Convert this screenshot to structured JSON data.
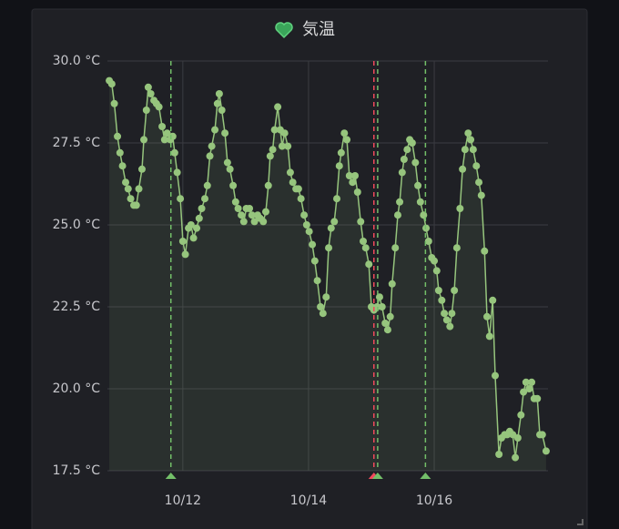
{
  "chart_data": {
    "type": "line",
    "title": "気温",
    "x": [
      10.83,
      10.87,
      10.91,
      10.96,
      11.0,
      11.04,
      11.09,
      11.13,
      11.17,
      11.22,
      11.26,
      11.3,
      11.35,
      11.38,
      11.42,
      11.45,
      11.49,
      11.54,
      11.58,
      11.62,
      11.67,
      11.71,
      11.75,
      11.8,
      11.84,
      11.87,
      11.91,
      11.96,
      12.0,
      12.04,
      12.09,
      12.13,
      12.17,
      12.22,
      12.26,
      12.3,
      12.35,
      12.39,
      12.43,
      12.46,
      12.51,
      12.55,
      12.58,
      12.62,
      12.67,
      12.71,
      12.75,
      12.8,
      12.84,
      12.88,
      12.93,
      12.97,
      13.01,
      13.06,
      13.1,
      13.14,
      13.19,
      13.23,
      13.28,
      13.32,
      13.36,
      13.39,
      13.43,
      13.46,
      13.51,
      13.55,
      13.58,
      13.62,
      13.67,
      13.71,
      13.75,
      13.8,
      13.84,
      13.88,
      13.93,
      13.97,
      14.01,
      14.06,
      14.1,
      14.14,
      14.19,
      14.23,
      14.28,
      14.32,
      14.36,
      14.41,
      14.45,
      14.49,
      14.52,
      14.57,
      14.61,
      14.65,
      14.7,
      14.74,
      14.78,
      14.83,
      14.87,
      14.91,
      14.96,
      15.0,
      15.04,
      15.09,
      15.13,
      15.17,
      15.22,
      15.26,
      15.3,
      15.33,
      15.38,
      15.42,
      15.45,
      15.49,
      15.52,
      15.57,
      15.61,
      15.65,
      15.7,
      15.74,
      15.78,
      15.83,
      15.87,
      15.91,
      15.96,
      16.0,
      16.04,
      16.07,
      16.12,
      16.16,
      16.2,
      16.25,
      16.28,
      16.32,
      16.36,
      16.41,
      16.45,
      16.49,
      16.54,
      16.58,
      16.62,
      16.67,
      16.71,
      16.75,
      16.8,
      16.84,
      16.88,
      16.93,
      16.97,
      17.03,
      17.07,
      17.12,
      17.16,
      17.2,
      17.25,
      17.29,
      17.33,
      17.38,
      17.42,
      17.46,
      17.51,
      17.55,
      17.59,
      17.64,
      17.68,
      17.72,
      17.78
    ],
    "series": [
      {
        "color": "#96c57d",
        "values": [
          29.4,
          29.3,
          28.7,
          27.7,
          27.2,
          26.8,
          26.3,
          26.1,
          25.8,
          25.6,
          25.6,
          26.1,
          26.7,
          27.6,
          28.5,
          29.2,
          29.0,
          28.8,
          28.7,
          28.6,
          28.0,
          27.6,
          27.8,
          27.6,
          27.7,
          27.2,
          26.6,
          25.8,
          24.5,
          24.1,
          24.9,
          25.0,
          24.6,
          24.9,
          25.2,
          25.5,
          25.8,
          26.2,
          27.1,
          27.4,
          27.9,
          28.7,
          29.0,
          28.5,
          27.8,
          26.9,
          26.7,
          26.2,
          25.7,
          25.5,
          25.3,
          25.1,
          25.5,
          25.5,
          25.3,
          25.1,
          25.3,
          25.2,
          25.1,
          25.4,
          26.2,
          27.1,
          27.3,
          27.9,
          28.6,
          27.9,
          27.4,
          27.8,
          27.4,
          26.6,
          26.3,
          26.1,
          26.1,
          25.8,
          25.3,
          25.0,
          24.8,
          24.4,
          23.9,
          23.3,
          22.5,
          22.3,
          22.8,
          24.3,
          24.9,
          25.1,
          25.8,
          26.8,
          27.2,
          27.8,
          27.6,
          26.5,
          26.3,
          26.5,
          26.0,
          25.1,
          24.5,
          24.3,
          23.8,
          22.5,
          22.4,
          22.5,
          22.8,
          22.5,
          22.0,
          21.8,
          22.2,
          23.2,
          24.3,
          25.3,
          25.7,
          26.6,
          27.0,
          27.3,
          27.6,
          27.5,
          26.9,
          26.2,
          25.7,
          25.3,
          24.9,
          24.5,
          24.0,
          23.9,
          23.6,
          23.0,
          22.7,
          22.3,
          22.1,
          21.9,
          22.3,
          23.0,
          24.3,
          25.5,
          26.7,
          27.3,
          27.8,
          27.6,
          27.3,
          26.8,
          26.3,
          25.9,
          24.2,
          22.2,
          21.6,
          22.7,
          20.4,
          18.0,
          18.5,
          18.6,
          18.6,
          18.7,
          18.6,
          17.9,
          18.5,
          19.2,
          19.9,
          20.2,
          20.0,
          20.2,
          19.7,
          19.7,
          18.6,
          18.6,
          18.1
        ]
      }
    ],
    "xlim": [
      10.8,
      17.81
    ],
    "xticks": [
      {
        "value": 12,
        "label": "10/12"
      },
      {
        "value": 14,
        "label": "10/14"
      },
      {
        "value": 16,
        "label": "10/16"
      }
    ],
    "ylim": [
      17.5,
      30
    ],
    "yticks": [
      {
        "value": 17.5,
        "label": "17.5 °C"
      },
      {
        "value": 20,
        "label": "20.0 °C"
      },
      {
        "value": 22.5,
        "label": "22.5 °C"
      },
      {
        "value": 25,
        "label": "25.0 °C"
      },
      {
        "value": 27.5,
        "label": "27.5 °C"
      },
      {
        "value": 30,
        "label": "30.0 °C"
      }
    ],
    "grid": true,
    "annotations": [
      {
        "x": 11.81,
        "color": "#73bf69"
      },
      {
        "x": 15.04,
        "color": "#f2495c"
      },
      {
        "x": 15.1,
        "color": "#73bf69"
      },
      {
        "x": 15.86,
        "color": "#73bf69"
      }
    ]
  }
}
